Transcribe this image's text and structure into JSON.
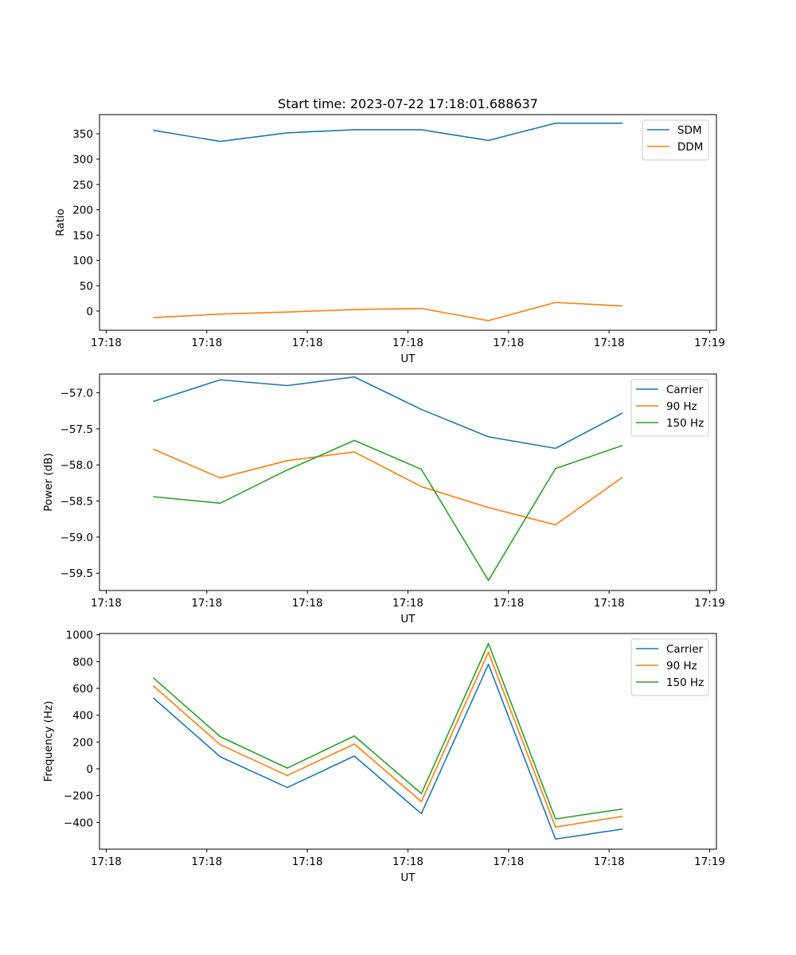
{
  "figure_title": "Start time: 2023-07-22 17:18:01.688637",
  "chart_data": [
    {
      "type": "line",
      "title": "Start time: 2023-07-22 17:18:01.688637",
      "xlabel": "UT",
      "ylabel": "Ratio",
      "xlim": [
        -0.8,
        8.4
      ],
      "ylim": [
        -38,
        388
      ],
      "x": [
        0,
        1,
        2,
        3,
        4,
        5,
        6,
        7
      ],
      "x_tick_positions": [
        -0.7,
        0.8,
        2.3,
        3.8,
        5.3,
        6.8,
        8.3
      ],
      "x_tick_labels": [
        "17:18",
        "17:18",
        "17:18",
        "17:18",
        "17:18",
        "17:18",
        "17:19"
      ],
      "y_ticks": [
        0,
        50,
        100,
        150,
        200,
        250,
        300,
        350
      ],
      "legend_position": "top-right",
      "series": [
        {
          "name": "SDM",
          "color": "#1f77b4",
          "values": [
            357,
            335,
            352,
            358,
            358,
            337,
            371,
            371
          ]
        },
        {
          "name": "DDM",
          "color": "#ff7f0e",
          "values": [
            -13,
            -6,
            -2,
            3,
            5,
            -19,
            17,
            10
          ]
        }
      ]
    },
    {
      "type": "line",
      "title": "",
      "xlabel": "UT",
      "ylabel": "Power (dB)",
      "xlim": [
        -0.8,
        8.4
      ],
      "ylim": [
        -59.74,
        -56.74
      ],
      "x": [
        0,
        1,
        2,
        3,
        4,
        5,
        6,
        7
      ],
      "x_tick_positions": [
        -0.7,
        0.8,
        2.3,
        3.8,
        5.3,
        6.8,
        8.3
      ],
      "x_tick_labels": [
        "17:18",
        "17:18",
        "17:18",
        "17:18",
        "17:18",
        "17:18",
        "17:19"
      ],
      "y_ticks": [
        -59.5,
        -59.0,
        -58.5,
        -58.0,
        -57.5,
        -57.0
      ],
      "y_tick_labels": [
        "−59.5",
        "−59.0",
        "−58.5",
        "−58.0",
        "−57.5",
        "−57.0"
      ],
      "legend_position": "top-right",
      "series": [
        {
          "name": "Carrier",
          "color": "#1f77b4",
          "values": [
            -57.12,
            -56.82,
            -56.9,
            -56.78,
            -57.23,
            -57.61,
            -57.77,
            -57.28
          ]
        },
        {
          "name": "90 Hz",
          "color": "#ff7f0e",
          "values": [
            -57.78,
            -58.18,
            -57.94,
            -57.82,
            -58.3,
            -58.59,
            -58.83,
            -58.17
          ]
        },
        {
          "name": "150 Hz",
          "color": "#2ca02c",
          "values": [
            -58.44,
            -58.53,
            -58.07,
            -57.66,
            -58.06,
            -59.6,
            -58.05,
            -57.73
          ]
        }
      ]
    },
    {
      "type": "line",
      "title": "",
      "xlabel": "UT",
      "ylabel": "Frequency (Hz)",
      "xlim": [
        -0.8,
        8.4
      ],
      "ylim": [
        -600,
        1010
      ],
      "x": [
        0,
        1,
        2,
        3,
        4,
        5,
        6,
        7
      ],
      "x_tick_positions": [
        -0.7,
        0.8,
        2.3,
        3.8,
        5.3,
        6.8,
        8.3
      ],
      "x_tick_labels": [
        "17:18",
        "17:18",
        "17:18",
        "17:18",
        "17:18",
        "17:18",
        "17:19"
      ],
      "y_ticks": [
        -400,
        -200,
        0,
        200,
        400,
        600,
        800,
        1000
      ],
      "y_tick_labels": [
        "−400",
        "−200",
        "0",
        "200",
        "400",
        "600",
        "800",
        "1000"
      ],
      "legend_position": "top-right",
      "series": [
        {
          "name": "Carrier",
          "color": "#1f77b4",
          "values": [
            530,
            90,
            -140,
            95,
            -335,
            780,
            -525,
            -450
          ]
        },
        {
          "name": "90 Hz",
          "color": "#ff7f0e",
          "values": [
            620,
            180,
            -50,
            185,
            -245,
            870,
            -435,
            -355
          ]
        },
        {
          "name": "150 Hz",
          "color": "#2ca02c",
          "values": [
            680,
            240,
            5,
            245,
            -185,
            935,
            -375,
            -300
          ]
        }
      ]
    }
  ]
}
